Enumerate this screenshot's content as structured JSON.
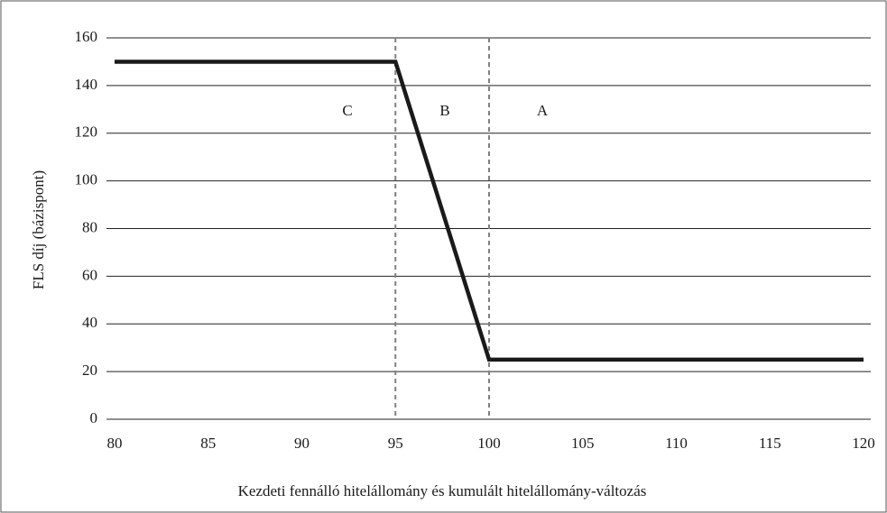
{
  "chart_data": {
    "type": "line",
    "x_label": "Kezdeti fennálló hitelállomány és kumulált hitelállomány-változás",
    "y_label": "FLS díj (bázispont)",
    "x": [
      80,
      95,
      100,
      120
    ],
    "series": [
      {
        "color": "#1a1a1a",
        "values": [
          150,
          150,
          25,
          25
        ]
      }
    ],
    "xlim": [
      80,
      120
    ],
    "xticks": [
      80,
      85,
      90,
      95,
      100,
      105,
      110,
      115,
      120
    ],
    "ylim": [
      0,
      160
    ],
    "yticks": [
      0,
      20,
      40,
      60,
      80,
      100,
      120,
      140,
      160
    ],
    "grid": true,
    "vlines": [
      95,
      100
    ],
    "annotations": [
      "C",
      "B",
      "A"
    ]
  }
}
